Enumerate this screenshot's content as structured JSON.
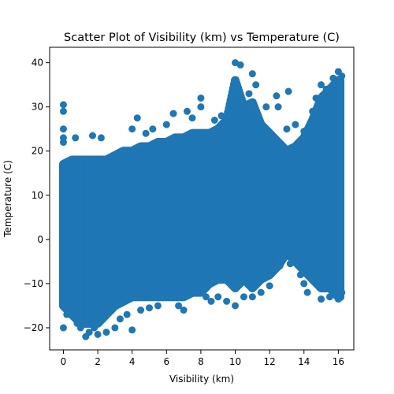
{
  "chart_data": {
    "type": "scatter",
    "title": "Scatter Plot of Visibility (km) vs Temperature (C)",
    "xlabel": "Visibility (km)",
    "ylabel": "Temperature (C)",
    "xlim": [
      -0.8,
      16.9
    ],
    "ylim": [
      -25,
      43.5
    ],
    "xticks": [
      0,
      2,
      4,
      6,
      8,
      10,
      12,
      14,
      16
    ],
    "yticks": [
      -20,
      -10,
      0,
      10,
      20,
      30,
      40
    ],
    "grid": false,
    "legend": "none",
    "marker_color": "#1f77b4",
    "density_envelope": [
      {
        "x": 0.0,
        "ymin": -15,
        "ymax": 17
      },
      {
        "x": 0.5,
        "ymin": -17,
        "ymax": 18
      },
      {
        "x": 1.0,
        "ymin": -19,
        "ymax": 18
      },
      {
        "x": 1.5,
        "ymin": -19,
        "ymax": 18
      },
      {
        "x": 2.0,
        "ymin": -19,
        "ymax": 18
      },
      {
        "x": 2.5,
        "ymin": -17,
        "ymax": 18
      },
      {
        "x": 3.0,
        "ymin": -15,
        "ymax": 19
      },
      {
        "x": 3.5,
        "ymin": -14,
        "ymax": 20
      },
      {
        "x": 4.0,
        "ymin": -13,
        "ymax": 20
      },
      {
        "x": 4.5,
        "ymin": -13,
        "ymax": 21
      },
      {
        "x": 5.0,
        "ymin": -13,
        "ymax": 21
      },
      {
        "x": 5.5,
        "ymin": -13,
        "ymax": 22
      },
      {
        "x": 6.0,
        "ymin": -13,
        "ymax": 22
      },
      {
        "x": 6.5,
        "ymin": -13,
        "ymax": 23
      },
      {
        "x": 7.0,
        "ymin": -13,
        "ymax": 23
      },
      {
        "x": 7.5,
        "ymin": -12,
        "ymax": 24
      },
      {
        "x": 8.0,
        "ymin": -12,
        "ymax": 24
      },
      {
        "x": 8.5,
        "ymin": -10,
        "ymax": 24
      },
      {
        "x": 9.0,
        "ymin": -9,
        "ymax": 25
      },
      {
        "x": 9.5,
        "ymin": -9,
        "ymax": 27
      },
      {
        "x": 10.0,
        "ymin": -11,
        "ymax": 36
      },
      {
        "x": 10.5,
        "ymin": -9,
        "ymax": 30
      },
      {
        "x": 11.0,
        "ymin": -11,
        "ymax": 31
      },
      {
        "x": 11.5,
        "ymin": -9,
        "ymax": 26
      },
      {
        "x": 12.0,
        "ymin": -8,
        "ymax": 24
      },
      {
        "x": 12.5,
        "ymin": -6,
        "ymax": 22
      },
      {
        "x": 13.0,
        "ymin": -3,
        "ymax": 20
      },
      {
        "x": 13.5,
        "ymin": -5,
        "ymax": 21
      },
      {
        "x": 14.0,
        "ymin": -7,
        "ymax": 23
      },
      {
        "x": 14.5,
        "ymin": -9,
        "ymax": 27
      },
      {
        "x": 15.0,
        "ymin": -11,
        "ymax": 32
      },
      {
        "x": 15.5,
        "ymin": -11,
        "ymax": 34
      },
      {
        "x": 16.0,
        "ymin": -13,
        "ymax": 36
      },
      {
        "x": 16.1,
        "ymin": -13,
        "ymax": 36
      }
    ],
    "points": [
      {
        "x": 0.0,
        "y": 30.5
      },
      {
        "x": 0.0,
        "y": 29.0
      },
      {
        "x": 0.0,
        "y": 25.0
      },
      {
        "x": 0.0,
        "y": 23.0
      },
      {
        "x": 0.0,
        "y": 22.0
      },
      {
        "x": 0.0,
        "y": -20.0
      },
      {
        "x": 0.0,
        "y": -15.0
      },
      {
        "x": 0.2,
        "y": -17.0
      },
      {
        "x": 0.7,
        "y": 23.0
      },
      {
        "x": 0.8,
        "y": -19.0
      },
      {
        "x": 1.0,
        "y": -20.0
      },
      {
        "x": 1.3,
        "y": -22.0
      },
      {
        "x": 1.5,
        "y": -21.0
      },
      {
        "x": 1.8,
        "y": -20.0
      },
      {
        "x": 2.0,
        "y": -21.5
      },
      {
        "x": 1.7,
        "y": 23.5
      },
      {
        "x": 2.2,
        "y": 23.0
      },
      {
        "x": 2.5,
        "y": -21.0
      },
      {
        "x": 3.0,
        "y": -20.0
      },
      {
        "x": 3.3,
        "y": -18.0
      },
      {
        "x": 3.7,
        "y": -17.0
      },
      {
        "x": 4.0,
        "y": -20.5
      },
      {
        "x": 4.0,
        "y": 25.0
      },
      {
        "x": 4.3,
        "y": 27.5
      },
      {
        "x": 4.5,
        "y": -16.0
      },
      {
        "x": 4.8,
        "y": 24.0
      },
      {
        "x": 5.0,
        "y": -15.5
      },
      {
        "x": 5.2,
        "y": 25.0
      },
      {
        "x": 5.5,
        "y": -15.0
      },
      {
        "x": 6.0,
        "y": 26.0
      },
      {
        "x": 6.4,
        "y": 28.5
      },
      {
        "x": 6.7,
        "y": -15.0
      },
      {
        "x": 7.0,
        "y": -16.0
      },
      {
        "x": 7.2,
        "y": 29.0
      },
      {
        "x": 7.5,
        "y": 27.5
      },
      {
        "x": 8.0,
        "y": 32.0
      },
      {
        "x": 8.0,
        "y": 30.0
      },
      {
        "x": 8.3,
        "y": -13.0
      },
      {
        "x": 8.6,
        "y": -14.0
      },
      {
        "x": 8.8,
        "y": 27.0
      },
      {
        "x": 9.0,
        "y": -13.0
      },
      {
        "x": 9.2,
        "y": 28.0
      },
      {
        "x": 9.5,
        "y": -14.0
      },
      {
        "x": 9.7,
        "y": 31.0
      },
      {
        "x": 10.0,
        "y": 40.0
      },
      {
        "x": 10.0,
        "y": -15.0
      },
      {
        "x": 10.3,
        "y": 39.5
      },
      {
        "x": 10.5,
        "y": -13.0
      },
      {
        "x": 10.8,
        "y": 33.0
      },
      {
        "x": 11.0,
        "y": 37.5
      },
      {
        "x": 11.2,
        "y": 35.0
      },
      {
        "x": 11.0,
        "y": -13.0
      },
      {
        "x": 11.5,
        "y": -12.0
      },
      {
        "x": 11.8,
        "y": 30.0
      },
      {
        "x": 12.0,
        "y": -10.5
      },
      {
        "x": 12.4,
        "y": 32.5
      },
      {
        "x": 12.5,
        "y": 30.0
      },
      {
        "x": 12.6,
        "y": -6.0
      },
      {
        "x": 12.5,
        "y": 22.0
      },
      {
        "x": 13.0,
        "y": 25.0
      },
      {
        "x": 13.1,
        "y": 33.5
      },
      {
        "x": 13.2,
        "y": -5.5
      },
      {
        "x": 13.5,
        "y": 26.0
      },
      {
        "x": 13.8,
        "y": -8.0
      },
      {
        "x": 14.0,
        "y": -10.0
      },
      {
        "x": 14.0,
        "y": 24.5
      },
      {
        "x": 14.2,
        "y": -12.0
      },
      {
        "x": 14.5,
        "y": 29.0
      },
      {
        "x": 14.7,
        "y": 32.0
      },
      {
        "x": 15.0,
        "y": -13.5
      },
      {
        "x": 15.0,
        "y": 35.0
      },
      {
        "x": 15.3,
        "y": 34.0
      },
      {
        "x": 15.5,
        "y": -13.0
      },
      {
        "x": 15.7,
        "y": 36.5
      },
      {
        "x": 16.0,
        "y": 38.0
      },
      {
        "x": 16.0,
        "y": -13.5
      },
      {
        "x": 16.2,
        "y": 37.0
      },
      {
        "x": 16.2,
        "y": -12.0
      }
    ]
  }
}
